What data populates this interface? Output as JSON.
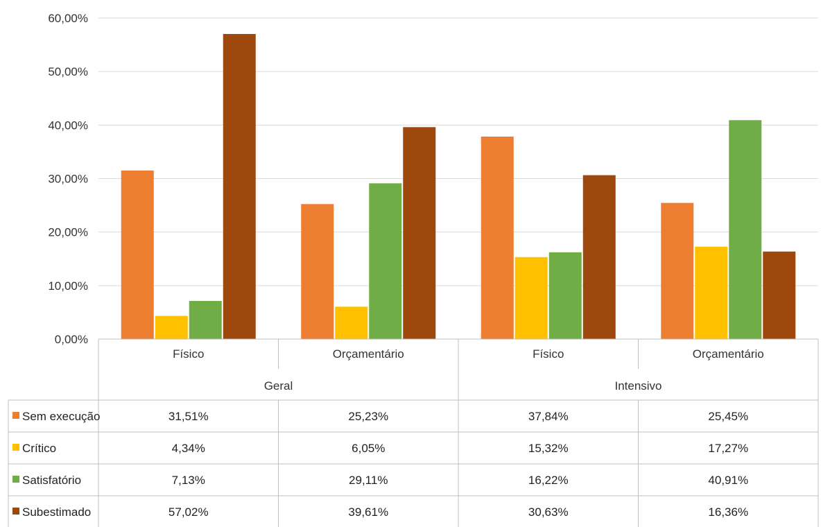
{
  "chart_data": {
    "type": "bar",
    "title": "",
    "xlabel": "",
    "ylabel": "",
    "ylim": [
      0,
      0.6
    ],
    "yticks": [
      0,
      0.1,
      0.2,
      0.3,
      0.4,
      0.5,
      0.6
    ],
    "ytick_labels": [
      "0,00%",
      "10,00%",
      "20,00%",
      "30,00%",
      "40,00%",
      "50,00%",
      "60,00%"
    ],
    "grid": true,
    "legend": "data-table-left",
    "categories": [
      "Físico",
      "Orçamentário",
      "Físico",
      "Orçamentário"
    ],
    "groups": [
      {
        "label": "Geral",
        "span": 2
      },
      {
        "label": "Intensivo",
        "span": 2
      }
    ],
    "series": [
      {
        "name": "Sem execução",
        "color": "#ED7D31",
        "values": [
          0.3151,
          0.2523,
          0.3784,
          0.2545
        ],
        "labels": [
          "31,51%",
          "25,23%",
          "37,84%",
          "25,45%"
        ]
      },
      {
        "name": "Crítico",
        "color": "#FFC000",
        "values": [
          0.0434,
          0.0605,
          0.1532,
          0.1727
        ],
        "labels": [
          "4,34%",
          "6,05%",
          "15,32%",
          "17,27%"
        ]
      },
      {
        "name": "Satisfatório",
        "color": "#70AD47",
        "values": [
          0.0713,
          0.2911,
          0.1622,
          0.4091
        ],
        "labels": [
          "7,13%",
          "29,11%",
          "16,22%",
          "40,91%"
        ]
      },
      {
        "name": "Subestimado",
        "color": "#9E480E",
        "values": [
          0.5702,
          0.3961,
          0.3063,
          0.1636
        ],
        "labels": [
          "57,02%",
          "39,61%",
          "30,63%",
          "16,36%"
        ]
      }
    ]
  }
}
